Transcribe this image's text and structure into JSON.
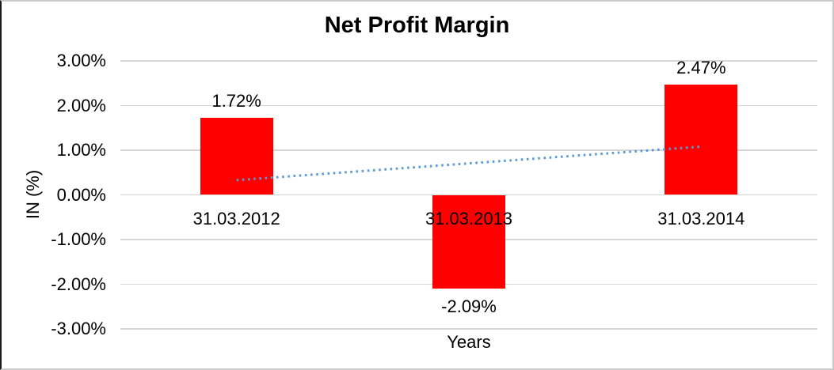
{
  "chart": {
    "title": "Net Profit Margin",
    "xlabel": "Years",
    "ylabel": "IN (%)"
  },
  "chart_data": {
    "type": "bar",
    "title": "Net Profit Margin",
    "xlabel": "Years",
    "ylabel": "IN (%)",
    "categories": [
      "31.03.2012",
      "31.03.2013",
      "31.03.2014"
    ],
    "values": [
      1.72,
      -2.09,
      2.47
    ],
    "data_labels": [
      "1.72%",
      "-2.09%",
      "2.47%"
    ],
    "ylim": [
      -3,
      3
    ],
    "ytick_step": 1,
    "ytick_labels": [
      "3.00%",
      "2.00%",
      "1.00%",
      "0.00%",
      "-1.00%",
      "-2.00%",
      "-3.00%"
    ],
    "grid": true,
    "legend": "none",
    "bar_color": "#ff0000",
    "gridline_color": "#d6d6d6",
    "trendline": {
      "type": "linear",
      "style": "dotted",
      "color": "#5b9bd5",
      "start_value": 0.33,
      "end_value": 1.08
    }
  }
}
